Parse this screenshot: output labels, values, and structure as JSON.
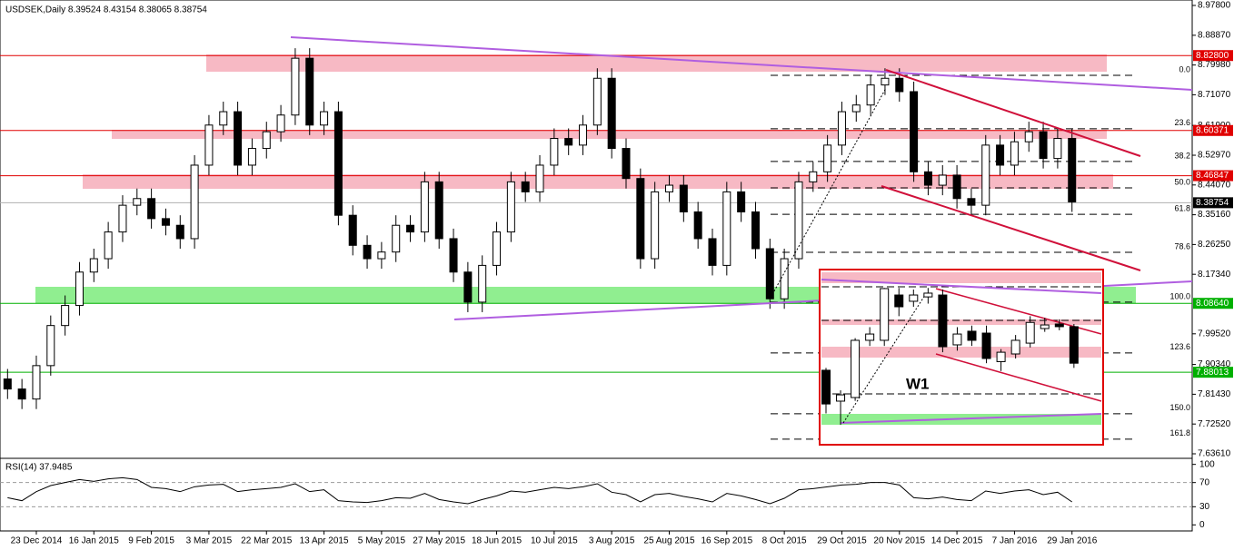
{
  "chart_data": [
    {
      "type": "candlestick",
      "title": "USDSEK,Daily 8.39524 8.43154 8.38065 8.38754",
      "categories": [
        null,
        null,
        "23 Dec 2014",
        null,
        null,
        null,
        "16 Jan 2015",
        null,
        null,
        null,
        "9 Feb 2015",
        null,
        null,
        null,
        "3 Mar 2015",
        null,
        null,
        null,
        "22 Mar 2015",
        null,
        null,
        null,
        "13 Apr 2015",
        null,
        null,
        null,
        "5 May 2015",
        null,
        null,
        null,
        "27 May 2015",
        null,
        null,
        null,
        "18 Jun 2015",
        null,
        null,
        null,
        "10 Jul 2015",
        null,
        null,
        null,
        "3 Aug 2015",
        null,
        null,
        null,
        "25 Aug 2015",
        null,
        null,
        null,
        "16 Sep 2015",
        null,
        null,
        null,
        "8 Oct 2015",
        null,
        null,
        null,
        "29 Oct 2015",
        null,
        null,
        null,
        "20 Nov 2015",
        null,
        null,
        null,
        "14 Dec 2015",
        null,
        null,
        null,
        "7 Jan 2016",
        null,
        null,
        null,
        "29 Jan 2016"
      ],
      "open": [
        7.86,
        7.83,
        7.8,
        7.9,
        8.02,
        8.08,
        8.18,
        8.22,
        8.3,
        8.38,
        8.4,
        8.34,
        8.32,
        8.28,
        8.5,
        8.62,
        8.66,
        8.5,
        8.55,
        8.6,
        8.65,
        8.82,
        8.62,
        8.66,
        8.35,
        8.26,
        8.22,
        8.24,
        8.32,
        8.3,
        8.45,
        8.28,
        8.18,
        8.09,
        8.2,
        8.3,
        8.45,
        8.42,
        8.5,
        8.58,
        8.56,
        8.62,
        8.76,
        8.55,
        8.46,
        8.22,
        8.42,
        8.44,
        8.36,
        8.28,
        8.2,
        8.42,
        8.36,
        8.25,
        8.1,
        8.22,
        8.45,
        8.48,
        8.56,
        8.66,
        8.68,
        8.74,
        8.76,
        8.72,
        8.48,
        8.44,
        8.47,
        8.4,
        8.38,
        8.56,
        8.5,
        8.57,
        8.6,
        8.52,
        8.58
      ],
      "high": [
        7.89,
        7.86,
        7.93,
        8.05,
        8.11,
        8.21,
        8.25,
        8.33,
        8.41,
        8.43,
        8.43,
        8.37,
        8.35,
        8.53,
        8.65,
        8.69,
        8.69,
        8.58,
        8.63,
        8.68,
        8.85,
        8.85,
        8.69,
        8.69,
        8.38,
        8.29,
        8.27,
        8.35,
        8.35,
        8.48,
        8.48,
        8.31,
        8.21,
        8.23,
        8.33,
        8.48,
        8.48,
        8.53,
        8.61,
        8.61,
        8.65,
        8.79,
        8.79,
        8.58,
        8.49,
        8.45,
        8.47,
        8.47,
        8.39,
        8.31,
        8.45,
        8.45,
        8.39,
        8.28,
        8.25,
        8.48,
        8.51,
        8.59,
        8.69,
        8.71,
        8.77,
        8.79,
        8.79,
        8.75,
        8.51,
        8.5,
        8.5,
        8.43,
        8.59,
        8.59,
        8.6,
        8.63,
        8.63,
        8.61,
        8.61
      ],
      "low": [
        7.8,
        7.77,
        7.77,
        7.87,
        7.99,
        8.05,
        8.15,
        8.19,
        8.27,
        8.35,
        8.31,
        8.29,
        8.25,
        8.25,
        8.47,
        8.59,
        8.47,
        8.47,
        8.52,
        8.57,
        8.62,
        8.59,
        8.59,
        8.32,
        8.23,
        8.19,
        8.19,
        8.21,
        8.27,
        8.27,
        8.25,
        8.15,
        8.06,
        8.06,
        8.17,
        8.27,
        8.39,
        8.39,
        8.47,
        8.53,
        8.53,
        8.59,
        8.52,
        8.43,
        8.19,
        8.19,
        8.39,
        8.33,
        8.25,
        8.17,
        8.17,
        8.33,
        8.22,
        8.07,
        8.07,
        8.19,
        8.42,
        8.45,
        8.53,
        8.63,
        8.65,
        8.71,
        8.69,
        8.45,
        8.41,
        8.41,
        8.37,
        8.35,
        8.35,
        8.47,
        8.47,
        8.54,
        8.49,
        8.49,
        8.36
      ],
      "close": [
        7.83,
        7.8,
        7.9,
        8.02,
        8.08,
        8.18,
        8.22,
        8.3,
        8.38,
        8.4,
        8.34,
        8.32,
        8.28,
        8.5,
        8.62,
        8.66,
        8.5,
        8.55,
        8.6,
        8.65,
        8.82,
        8.62,
        8.66,
        8.35,
        8.26,
        8.22,
        8.24,
        8.32,
        8.3,
        8.45,
        8.28,
        8.18,
        8.09,
        8.2,
        8.3,
        8.45,
        8.42,
        8.5,
        8.58,
        8.56,
        8.62,
        8.76,
        8.55,
        8.46,
        8.22,
        8.42,
        8.44,
        8.36,
        8.28,
        8.2,
        8.42,
        8.36,
        8.25,
        8.1,
        8.22,
        8.45,
        8.48,
        8.56,
        8.66,
        8.68,
        8.74,
        8.76,
        8.72,
        8.48,
        8.44,
        8.47,
        8.4,
        8.38,
        8.56,
        8.5,
        8.57,
        8.6,
        8.52,
        8.58,
        8.39
      ],
      "up_color": "#ffffff",
      "down_color": "#000000",
      "ylim": [
        7.6225,
        8.9943
      ],
      "yticks": [
        {
          "value": 8.978,
          "label": "8.97800"
        },
        {
          "value": 8.8887,
          "label": "8.88870"
        },
        {
          "value": 8.7998,
          "label": "8.79980"
        },
        {
          "value": 8.7107,
          "label": "8.71070"
        },
        {
          "value": 8.619,
          "label": "8.61900"
        },
        {
          "value": 8.5297,
          "label": "8.52970"
        },
        {
          "value": 8.4407,
          "label": "8.44070"
        },
        {
          "value": 8.3516,
          "label": "8.35160"
        },
        {
          "value": 8.2625,
          "label": "8.26250"
        },
        {
          "value": 8.1734,
          "label": "8.17340"
        },
        {
          "value": 7.9952,
          "label": "7.99520"
        },
        {
          "value": 7.9034,
          "label": "7.90340"
        },
        {
          "value": 7.8143,
          "label": "7.81430"
        },
        {
          "value": 7.7252,
          "label": "7.72520"
        },
        {
          "value": 7.6361,
          "label": "7.63610"
        }
      ],
      "levels": [
        {
          "value": 8.828,
          "label": "8.82800",
          "color": "#e00000"
        },
        {
          "value": 8.60371,
          "label": "8.60371",
          "color": "#e00000"
        },
        {
          "value": 8.46847,
          "label": "8.46847",
          "color": "#e00000"
        },
        {
          "value": 8.38754,
          "label": "8.38754",
          "color": "#000000"
        },
        {
          "value": 8.0864,
          "label": "8.08640",
          "color": "#00b000"
        },
        {
          "value": 7.88013,
          "label": "7.88013",
          "color": "#00b000"
        }
      ],
      "fib_levels": [
        {
          "value": 8.769,
          "label": "0.0"
        },
        {
          "value": 8.609,
          "label": "23.6"
        },
        {
          "value": 8.511,
          "label": "38.2"
        },
        {
          "value": 8.432,
          "label": "50.0"
        },
        {
          "value": 8.353,
          "label": "61.8"
        },
        {
          "value": 8.239,
          "label": "78.6"
        },
        {
          "value": 8.09,
          "label": "100.0"
        },
        {
          "value": 7.938,
          "label": "123.6"
        },
        {
          "value": 7.756,
          "label": "150.0"
        },
        {
          "value": 7.68,
          "label": "161.8"
        }
      ]
    },
    {
      "type": "line",
      "title": "RSI(14) 37.9485",
      "color": "#000000",
      "values": [
        45,
        40,
        55,
        65,
        70,
        75,
        72,
        76,
        78,
        75,
        62,
        60,
        55,
        63,
        66,
        67,
        55,
        58,
        60,
        62,
        68,
        55,
        58,
        40,
        38,
        37,
        40,
        45,
        44,
        52,
        42,
        38,
        35,
        42,
        48,
        56,
        54,
        58,
        62,
        60,
        63,
        68,
        54,
        50,
        38,
        50,
        52,
        47,
        43,
        38,
        52,
        48,
        42,
        35,
        44,
        58,
        60,
        63,
        66,
        67,
        70,
        70,
        66,
        45,
        43,
        46,
        42,
        40,
        56,
        52,
        56,
        58,
        50,
        54,
        38
      ],
      "ylim": [
        -10,
        110
      ],
      "yticks": [
        100,
        70,
        30,
        0
      ]
    },
    {
      "type": "candlestick",
      "label": "W1",
      "up_color": "#ffffff",
      "down_color": "#000000",
      "ylim": [
        7.8,
        8.9
      ],
      "open": [
        8.275,
        8.078,
        8.101,
        8.466,
        8.466,
        8.755,
        8.715,
        8.743,
        8.755,
        8.437,
        8.524,
        8.512,
        8.33,
        8.379,
        8.448,
        8.541,
        8.57,
        8.553
      ],
      "high": [
        8.29,
        8.147,
        8.48,
        8.55,
        8.8,
        8.8,
        8.79,
        8.8,
        8.79,
        8.55,
        8.56,
        8.56,
        8.41,
        8.5,
        8.62,
        8.61,
        8.6,
        8.57
      ],
      "low": [
        8.0,
        7.927,
        8.08,
        8.43,
        8.43,
        8.62,
        8.68,
        8.7,
        8.39,
        8.4,
        8.43,
        8.32,
        8.27,
        8.35,
        8.42,
        8.52,
        8.53,
        8.29
      ],
      "close": [
        8.06,
        8.118,
        8.466,
        8.506,
        8.796,
        8.68,
        8.755,
        8.767,
        8.425,
        8.506,
        8.466,
        8.35,
        8.39,
        8.466,
        8.58,
        8.564,
        8.553,
        8.32
      ]
    }
  ]
}
